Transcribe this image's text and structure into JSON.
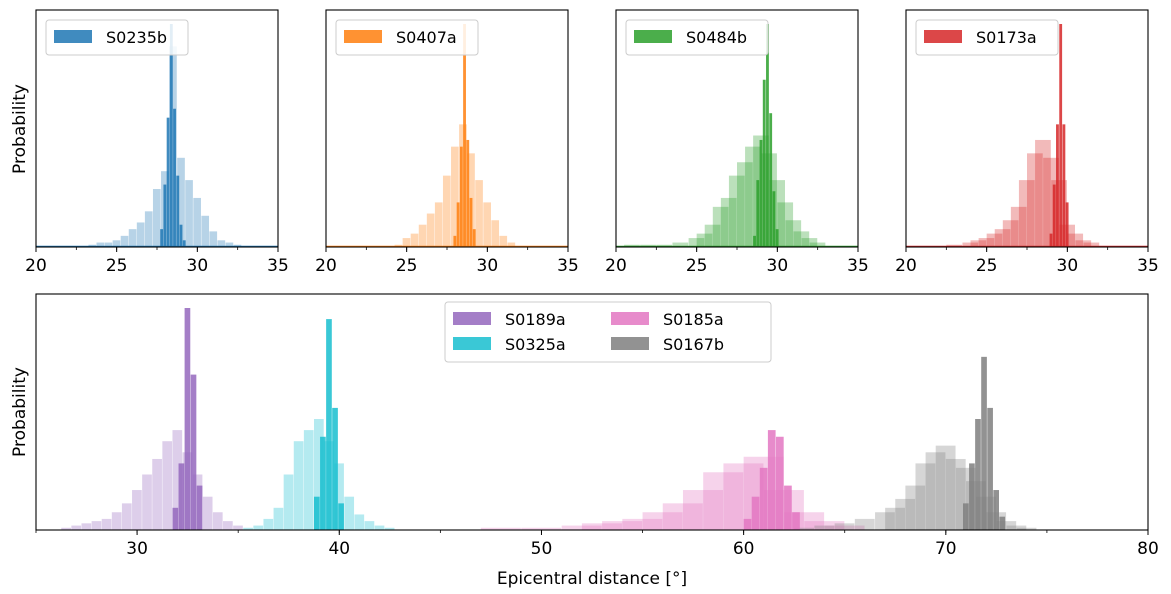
{
  "figure": {
    "ylabel_top": "Probability",
    "ylabel_bottom": "Probability",
    "xlabel_bottom": "Epicentral distance [°]"
  },
  "chart_data": [
    {
      "type": "bar",
      "subtype": "histogram",
      "xlim": [
        20,
        35
      ],
      "xticks": [
        20,
        25,
        30,
        35
      ],
      "yticks_shown": false,
      "ylabel": "Probability",
      "legend_position": "upper-left",
      "series": [
        {
          "name": "S0235b",
          "color": "#1f77b4",
          "style": "narrow-dark",
          "bins": [
            [
              27.8,
              0.08
            ],
            [
              28.0,
              0.28
            ],
            [
              28.2,
              0.58
            ],
            [
              28.4,
              1.0
            ],
            [
              28.6,
              0.62
            ],
            [
              28.8,
              0.32
            ],
            [
              29.0,
              0.1
            ],
            [
              29.2,
              0.03
            ]
          ]
        },
        {
          "name": "S0235b",
          "color": "#1f77b4",
          "style": "wide-light",
          "bins": [
            [
              23.5,
              0.01
            ],
            [
              24.0,
              0.02
            ],
            [
              24.5,
              0.02
            ],
            [
              25.0,
              0.03
            ],
            [
              25.5,
              0.05
            ],
            [
              26.0,
              0.08
            ],
            [
              26.5,
              0.11
            ],
            [
              27.0,
              0.16
            ],
            [
              27.5,
              0.26
            ],
            [
              28.0,
              0.34
            ],
            [
              28.5,
              0.9
            ],
            [
              29.0,
              0.4
            ],
            [
              29.5,
              0.3
            ],
            [
              30.0,
              0.22
            ],
            [
              30.5,
              0.14
            ],
            [
              31.0,
              0.07
            ],
            [
              31.5,
              0.03
            ],
            [
              32.0,
              0.02
            ],
            [
              32.5,
              0.01
            ]
          ]
        }
      ]
    },
    {
      "type": "bar",
      "subtype": "histogram",
      "xlim": [
        20,
        35
      ],
      "xticks": [
        20,
        25,
        30,
        35
      ],
      "yticks_shown": false,
      "legend_position": "upper-left",
      "series": [
        {
          "name": "S0407a",
          "color": "#ff7f0e",
          "style": "narrow-dark",
          "bins": [
            [
              28.0,
              0.05
            ],
            [
              28.2,
              0.2
            ],
            [
              28.4,
              0.45
            ],
            [
              28.6,
              1.0
            ],
            [
              28.8,
              0.48
            ],
            [
              29.0,
              0.22
            ],
            [
              29.2,
              0.08
            ]
          ]
        },
        {
          "name": "S0407a",
          "color": "#ff7f0e",
          "style": "wide-light",
          "bins": [
            [
              24.5,
              0.01
            ],
            [
              25.0,
              0.04
            ],
            [
              25.5,
              0.06
            ],
            [
              26.0,
              0.1
            ],
            [
              26.5,
              0.15
            ],
            [
              27.0,
              0.2
            ],
            [
              27.5,
              0.32
            ],
            [
              28.0,
              0.45
            ],
            [
              28.5,
              0.55
            ],
            [
              29.0,
              0.42
            ],
            [
              29.5,
              0.3
            ],
            [
              30.0,
              0.2
            ],
            [
              30.5,
              0.12
            ],
            [
              31.0,
              0.05
            ],
            [
              31.5,
              0.02
            ]
          ]
        }
      ]
    },
    {
      "type": "bar",
      "subtype": "histogram",
      "xlim": [
        20,
        35
      ],
      "xticks": [
        20,
        25,
        30,
        35
      ],
      "yticks_shown": false,
      "legend_position": "upper-left",
      "series": [
        {
          "name": "S0484b",
          "color": "#2ca02c",
          "style": "narrow-dark",
          "bins": [
            [
              28.6,
              0.05
            ],
            [
              28.8,
              0.3
            ],
            [
              29.0,
              0.48
            ],
            [
              29.2,
              0.75
            ],
            [
              29.4,
              1.0
            ],
            [
              29.6,
              0.6
            ],
            [
              29.8,
              0.25
            ],
            [
              30.0,
              0.08
            ]
          ]
        },
        {
          "name": "S0484b",
          "color": "#2ca02c",
          "style": "wide-light",
          "bins": [
            [
              21.0,
              0.01
            ],
            [
              22.0,
              0.01
            ],
            [
              23.0,
              0.01
            ],
            [
              24.0,
              0.02
            ],
            [
              25.0,
              0.04
            ],
            [
              25.5,
              0.06
            ],
            [
              26.0,
              0.1
            ],
            [
              26.5,
              0.18
            ],
            [
              27.0,
              0.22
            ],
            [
              27.5,
              0.32
            ],
            [
              28.0,
              0.38
            ],
            [
              28.5,
              0.45
            ],
            [
              29.0,
              0.5
            ],
            [
              29.5,
              0.42
            ],
            [
              30.0,
              0.3
            ],
            [
              30.5,
              0.2
            ],
            [
              31.0,
              0.12
            ],
            [
              31.5,
              0.07
            ],
            [
              32.0,
              0.04
            ],
            [
              32.5,
              0.02
            ]
          ]
        }
      ]
    },
    {
      "type": "bar",
      "subtype": "histogram",
      "xlim": [
        20,
        35
      ],
      "xticks": [
        20,
        25,
        30,
        35
      ],
      "yticks_shown": false,
      "legend_position": "upper-left",
      "series": [
        {
          "name": "S0173a",
          "color": "#d62728",
          "style": "narrow-dark",
          "bins": [
            [
              29.0,
              0.06
            ],
            [
              29.2,
              0.28
            ],
            [
              29.4,
              0.55
            ],
            [
              29.6,
              1.0
            ],
            [
              29.8,
              0.55
            ],
            [
              30.0,
              0.2
            ]
          ]
        },
        {
          "name": "S0173a",
          "color": "#d62728",
          "style": "wide-light",
          "bins": [
            [
              23.0,
              0.01
            ],
            [
              24.0,
              0.02
            ],
            [
              24.5,
              0.03
            ],
            [
              25.0,
              0.04
            ],
            [
              25.5,
              0.06
            ],
            [
              26.0,
              0.08
            ],
            [
              26.5,
              0.12
            ],
            [
              27.0,
              0.18
            ],
            [
              27.5,
              0.3
            ],
            [
              28.0,
              0.42
            ],
            [
              28.5,
              0.48
            ],
            [
              29.0,
              0.4
            ],
            [
              29.5,
              0.3
            ],
            [
              30.0,
              0.1
            ],
            [
              30.5,
              0.06
            ],
            [
              31.0,
              0.03
            ],
            [
              31.5,
              0.02
            ]
          ]
        }
      ]
    },
    {
      "type": "bar",
      "subtype": "histogram",
      "xlim": [
        25,
        80
      ],
      "xticks": [
        30,
        40,
        50,
        60,
        70,
        80
      ],
      "xlabel": "Epicentral distance [°]",
      "ylabel": "Probability",
      "yticks_shown": false,
      "legend_position": "upper-center",
      "legend_columns": 2,
      "legend_order": [
        "S0189a",
        "S0325a",
        "S0185a",
        "S0167b"
      ],
      "series": [
        {
          "name": "S0189a",
          "color": "#9467bd",
          "style": "narrow-dark",
          "bins": [
            [
              31.9,
              0.1
            ],
            [
              32.2,
              0.3
            ],
            [
              32.5,
              1.0
            ],
            [
              32.8,
              0.7
            ],
            [
              33.1,
              0.2
            ]
          ]
        },
        {
          "name": "S0189a",
          "color": "#9467bd",
          "style": "wide-light",
          "bins": [
            [
              26.5,
              0.01
            ],
            [
              27.0,
              0.02
            ],
            [
              27.5,
              0.03
            ],
            [
              28.0,
              0.04
            ],
            [
              28.5,
              0.05
            ],
            [
              29.0,
              0.08
            ],
            [
              29.5,
              0.12
            ],
            [
              30.0,
              0.18
            ],
            [
              30.5,
              0.25
            ],
            [
              31.0,
              0.32
            ],
            [
              31.5,
              0.4
            ],
            [
              32.0,
              0.45
            ],
            [
              32.5,
              0.35
            ],
            [
              33.0,
              0.25
            ],
            [
              33.5,
              0.15
            ],
            [
              34.0,
              0.08
            ],
            [
              34.5,
              0.04
            ],
            [
              35.0,
              0.02
            ]
          ]
        },
        {
          "name": "S0325a",
          "color": "#17becf",
          "style": "narrow-dark",
          "bins": [
            [
              38.9,
              0.15
            ],
            [
              39.2,
              0.42
            ],
            [
              39.5,
              0.95
            ],
            [
              39.8,
              0.55
            ],
            [
              40.1,
              0.12
            ]
          ]
        },
        {
          "name": "S0325a",
          "color": "#17becf",
          "style": "wide-light",
          "bins": [
            [
              35.5,
              0.01
            ],
            [
              36.0,
              0.02
            ],
            [
              36.5,
              0.05
            ],
            [
              37.0,
              0.1
            ],
            [
              37.5,
              0.25
            ],
            [
              38.0,
              0.4
            ],
            [
              38.5,
              0.45
            ],
            [
              39.0,
              0.5
            ],
            [
              39.5,
              0.4
            ],
            [
              40.0,
              0.3
            ],
            [
              40.5,
              0.15
            ],
            [
              41.0,
              0.07
            ],
            [
              41.5,
              0.04
            ],
            [
              42.0,
              0.02
            ],
            [
              42.5,
              0.01
            ]
          ]
        },
        {
          "name": "S0185a",
          "color": "#e377c2",
          "style": "narrow-dark",
          "bins": [
            [
              60.2,
              0.05
            ],
            [
              60.6,
              0.15
            ],
            [
              61.0,
              0.28
            ],
            [
              61.4,
              0.45
            ],
            [
              61.8,
              0.42
            ],
            [
              62.2,
              0.2
            ],
            [
              62.6,
              0.08
            ]
          ]
        },
        {
          "name": "S0185a",
          "color": "#e377c2",
          "style": "wide-light",
          "bins": [
            [
              48.0,
              0.01
            ],
            [
              50.0,
              0.01
            ],
            [
              52.0,
              0.02
            ],
            [
              53.0,
              0.03
            ],
            [
              54.0,
              0.04
            ],
            [
              55.0,
              0.05
            ],
            [
              56.0,
              0.08
            ],
            [
              57.0,
              0.12
            ],
            [
              58.0,
              0.18
            ],
            [
              59.0,
              0.26
            ],
            [
              60.0,
              0.3
            ],
            [
              61.0,
              0.33
            ],
            [
              62.0,
              0.18
            ],
            [
              63.0,
              0.08
            ],
            [
              64.0,
              0.04
            ],
            [
              65.0,
              0.02
            ]
          ]
        },
        {
          "name": "S0167b",
          "color": "#7f7f7f",
          "style": "narrow-dark",
          "bins": [
            [
              71.0,
              0.12
            ],
            [
              71.3,
              0.3
            ],
            [
              71.6,
              0.5
            ],
            [
              71.9,
              0.78
            ],
            [
              72.2,
              0.55
            ],
            [
              72.5,
              0.18
            ],
            [
              72.8,
              0.06
            ]
          ]
        },
        {
          "name": "S0167b",
          "color": "#7f7f7f",
          "style": "wide-light",
          "bins": [
            [
              63.0,
              0.01
            ],
            [
              64.0,
              0.02
            ],
            [
              65.0,
              0.03
            ],
            [
              66.0,
              0.05
            ],
            [
              67.0,
              0.08
            ],
            [
              67.5,
              0.1
            ],
            [
              68.0,
              0.14
            ],
            [
              68.5,
              0.2
            ],
            [
              69.0,
              0.3
            ],
            [
              69.5,
              0.35
            ],
            [
              70.0,
              0.38
            ],
            [
              70.5,
              0.32
            ],
            [
              71.0,
              0.28
            ],
            [
              71.5,
              0.22
            ],
            [
              72.0,
              0.15
            ],
            [
              72.5,
              0.08
            ],
            [
              73.0,
              0.04
            ],
            [
              73.5,
              0.02
            ],
            [
              74.0,
              0.01
            ]
          ]
        }
      ]
    }
  ]
}
